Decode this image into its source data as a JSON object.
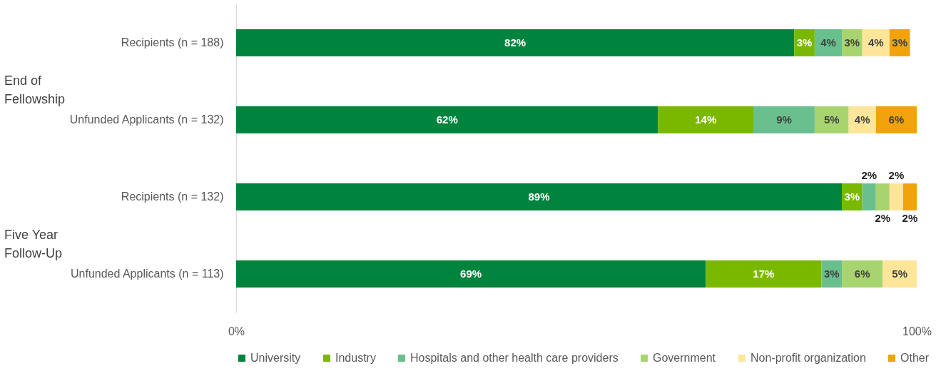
{
  "chart_data": {
    "type": "bar",
    "orientation": "horizontal",
    "stacked": true,
    "legend": "bottom",
    "categories": [
      "Recipients (n = 188)",
      "Unfunded Applicants (n = 132)",
      "Recipients (n = 132)",
      "Unfunded Applicants (n = 113)"
    ],
    "series": [
      {
        "name": "University",
        "color": "#00843d",
        "values": [
          82,
          62,
          89,
          69
        ],
        "value_labels": [
          "82%",
          "62%",
          "89%",
          "69%"
        ]
      },
      {
        "name": "Industry",
        "color": "#7ab800",
        "values": [
          3,
          14,
          3,
          17
        ],
        "value_labels": [
          "3%",
          "14%",
          "3%",
          "17%"
        ]
      },
      {
        "name": "Hospitals and other health care providers",
        "color": "#6abf8e",
        "values": [
          4,
          9,
          2,
          3
        ],
        "value_labels": [
          "4%",
          "9%",
          "2%",
          "3%"
        ]
      },
      {
        "name": "Government",
        "color": "#a8d46f",
        "values": [
          3,
          5,
          2,
          6
        ],
        "value_labels": [
          "3%",
          "5%",
          "2%",
          "6%"
        ]
      },
      {
        "name": "Non-profit organization",
        "color": "#fde59a",
        "values": [
          4,
          4,
          2,
          5
        ],
        "value_labels": [
          "4%",
          "4%",
          "2%",
          "5%"
        ]
      },
      {
        "name": "Other",
        "color": "#f0a30a",
        "values": [
          3,
          6,
          2,
          null
        ],
        "value_labels": [
          "3%",
          "6%",
          "2%",
          null
        ]
      }
    ],
    "xlim": [
      0,
      100
    ],
    "xticks": [
      {
        "value": 0,
        "label": "0%"
      },
      {
        "value": 100,
        "label": "100%"
      }
    ],
    "annotations": [
      "End of Fellowship",
      "Five Year Follow-Up"
    ]
  }
}
